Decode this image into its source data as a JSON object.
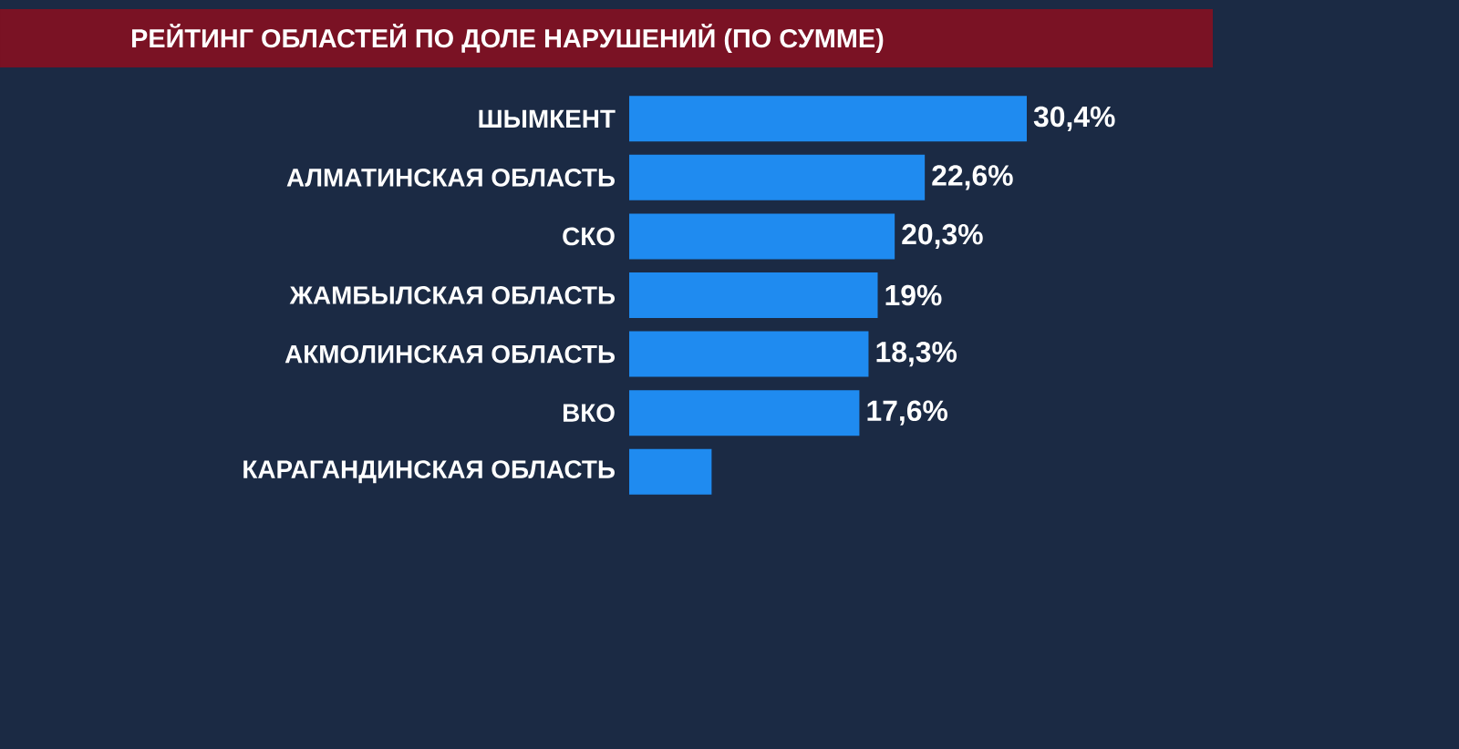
{
  "chart_data": {
    "type": "bar",
    "orientation": "horizontal",
    "title": "РЕЙТИНГ ОБЛАСТЕЙ ПО ДОЛЕ НАРУШЕНИЙ (ПО СУММЕ)",
    "categories": [
      "ШЫМКЕНТ",
      "АЛМАТИНСКАЯ ОБЛАСТЬ",
      "СКО",
      "ЖАМБЫЛСКАЯ ОБЛАСТЬ",
      "АКМОЛИНСКАЯ ОБЛАСТЬ",
      "ВКО",
      "КАРАГАНДИНСКАЯ ОБЛАСТЬ"
    ],
    "values": [
      30.4,
      22.6,
      20.3,
      19,
      18.3,
      17.6,
      6.3
    ],
    "value_labels": [
      "30,4%",
      "22,6%",
      "20,3%",
      "19%",
      "18,3%",
      "17,6%",
      null
    ],
    "color": "#1f8bf0",
    "tick_labels": "y"
  }
}
